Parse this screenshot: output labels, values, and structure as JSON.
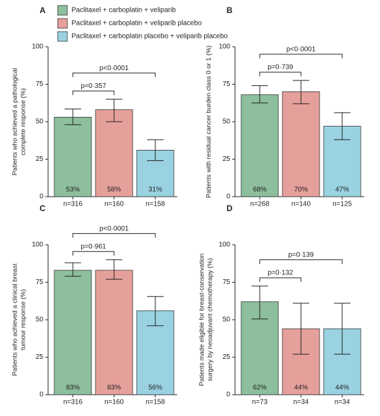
{
  "chart_data": [
    {
      "type": "bar",
      "panel": "A",
      "ylabel": [
        "Patients who achieved a pathological",
        "complete response (%)"
      ],
      "legend": [
        {
          "name": "Paclitaxel + carboplatin + veliparib",
          "color": "#8dbf9c"
        },
        {
          "name": "Paclitaxel + carboplatin + veliparib placebo",
          "color": "#e6a09b"
        },
        {
          "name": "Paclitaxel + carboplatin placebo + veliparib placebo",
          "color": "#9ad2e2"
        }
      ],
      "categories": [
        "n=316",
        "n=160",
        "n=158"
      ],
      "values": [
        53,
        58,
        31
      ],
      "value_labels": [
        "53%",
        "58%",
        "31%"
      ],
      "ci_low": [
        48,
        50,
        24
      ],
      "ci_high": [
        58.5,
        65,
        38
      ],
      "colors": [
        "#8dbf9c",
        "#e6a09b",
        "#9ad2e2"
      ],
      "ylim": [
        0,
        100
      ],
      "yticks": [
        0,
        25,
        50,
        75,
        100
      ],
      "annotations": [
        "p=0·357",
        "p<0·0001"
      ]
    },
    {
      "type": "bar",
      "panel": "B",
      "ylabel": [
        "Patients with residual cancer burden class 0 or 1 (%)"
      ],
      "categories": [
        "n=268",
        "n=140",
        "n=125"
      ],
      "values": [
        68,
        70,
        47
      ],
      "value_labels": [
        "68%",
        "70%",
        "47%"
      ],
      "ci_low": [
        62.5,
        62,
        38
      ],
      "ci_high": [
        74,
        77.5,
        56
      ],
      "colors": [
        "#8dbf9c",
        "#e6a09b",
        "#9ad2e2"
      ],
      "ylim": [
        0,
        100
      ],
      "yticks": [
        0,
        25,
        50,
        75,
        100
      ],
      "annotations": [
        "p=0·739",
        "p<0·0001"
      ]
    },
    {
      "type": "bar",
      "panel": "C",
      "ylabel": [
        "Patients who achieved a clinical breast",
        "tumour response (%)"
      ],
      "categories": [
        "n=316",
        "n=160",
        "n=158"
      ],
      "values": [
        83,
        83,
        56
      ],
      "value_labels": [
        "83%",
        "83%",
        "56%"
      ],
      "ci_low": [
        79,
        77,
        46
      ],
      "ci_high": [
        88,
        90,
        65.5
      ],
      "colors": [
        "#8dbf9c",
        "#e6a09b",
        "#9ad2e2"
      ],
      "ylim": [
        0,
        100
      ],
      "yticks": [
        0,
        25,
        50,
        75,
        100
      ],
      "annotations": [
        "p=0·961",
        "p<0·0001"
      ]
    },
    {
      "type": "bar",
      "panel": "D",
      "ylabel": [
        "Patients made eligible for breast-conservation",
        "surgery by neoadjuvant chemotherapy (%)"
      ],
      "categories": [
        "n=73",
        "n=34",
        "n=34"
      ],
      "values": [
        62,
        44,
        44
      ],
      "value_labels": [
        "62%",
        "44%",
        "44%"
      ],
      "ci_low": [
        50.5,
        27,
        27
      ],
      "ci_high": [
        72.5,
        61,
        61
      ],
      "colors": [
        "#8dbf9c",
        "#e6a09b",
        "#9ad2e2"
      ],
      "ylim": [
        0,
        100
      ],
      "yticks": [
        0,
        25,
        50,
        75,
        100
      ],
      "annotations": [
        "p=0·132",
        "p=0·139"
      ]
    }
  ]
}
